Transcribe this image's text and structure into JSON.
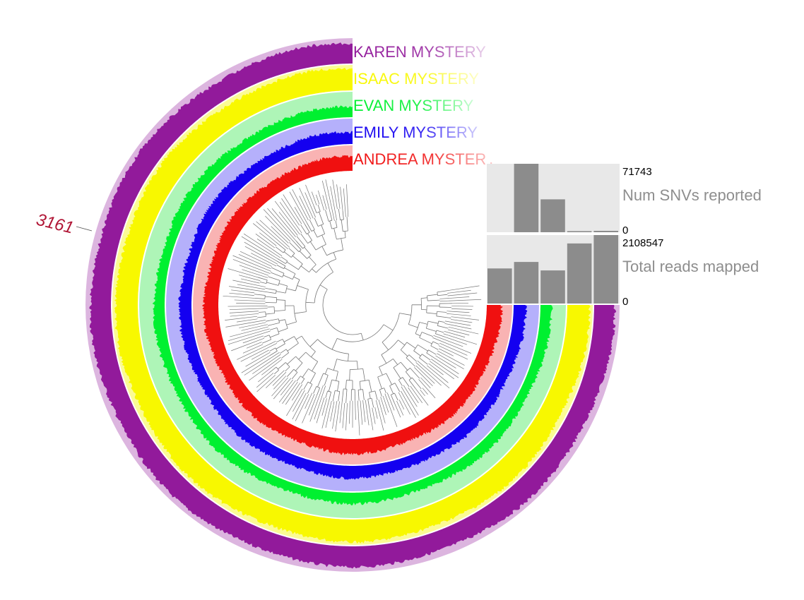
{
  "chart_data": {
    "type": "circular-phylogram",
    "layers": [
      {
        "name": "KAREN MYSTERY",
        "color": "#921a9b",
        "bg": "#dcb5df",
        "fill": 0.78
      },
      {
        "name": "ISAAC MYSTERY",
        "color": "#f8f800",
        "bg": "#fbfb94",
        "fill": 0.85
      },
      {
        "name": "EVAN MYSTERY",
        "color": "#00f030",
        "bg": "#aef5b7",
        "fill": 0.4
      },
      {
        "name": "EMILY MYSTERY",
        "color": "#1400f0",
        "bg": "#b5b0fb",
        "fill": 0.45
      },
      {
        "name": "ANDREA MYSTERY",
        "color": "#f01010",
        "bg": "#f9b3b3",
        "fill": 0.55
      }
    ],
    "bar_charts": [
      {
        "title": "Num SNVs reported",
        "max_label": "71743",
        "min_label": "0",
        "max": 71743,
        "values": [
          0,
          71743,
          34500,
          1200,
          1500
        ]
      },
      {
        "title": "Total reads mapped",
        "max_label": "2108547",
        "min_label": "0",
        "max": 2108547,
        "values": [
          1080000,
          1280000,
          1020000,
          1850000,
          2108547
        ]
      }
    ],
    "selection_label": "3161",
    "selection_color": "#b01535"
  }
}
